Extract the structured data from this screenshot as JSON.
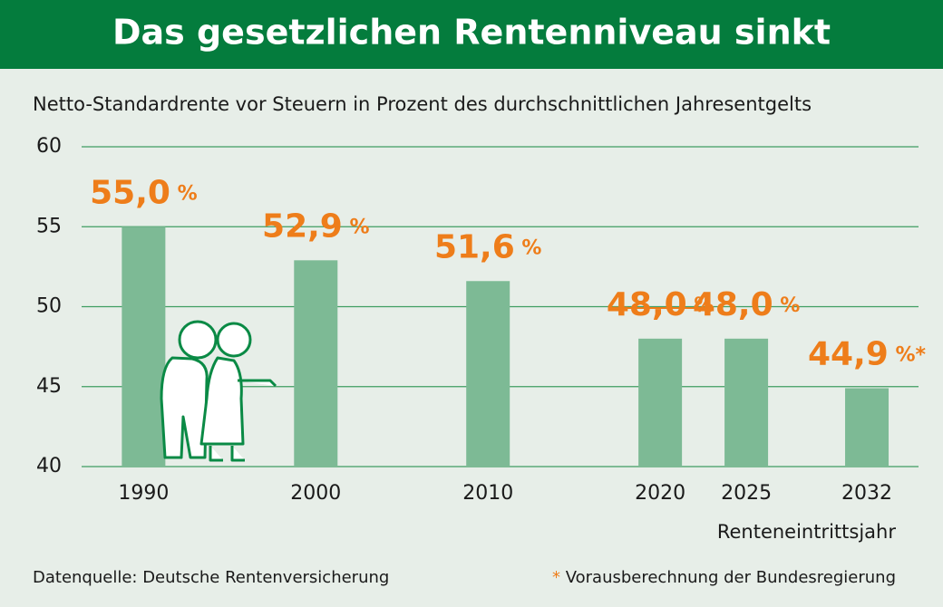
{
  "chart_data": {
    "type": "bar",
    "title": "Das gesetzlichen Rentenniveau sinkt",
    "subtitle": "Netto-Standardrente vor Steuern in Prozent des durchschnittlichen Jahresentgelts",
    "x_label": "Renteneintrittsjahr",
    "x": [
      1990,
      2000,
      2010,
      2020,
      2025,
      2032
    ],
    "values": [
      55.0,
      52.9,
      51.6,
      48.0,
      48.0,
      44.9
    ],
    "value_labels": [
      "55,0 %",
      "52,9 %",
      "51,6 %",
      "48,0 %",
      "48,0 %",
      "44,9 %*"
    ],
    "color": "#7dba95",
    "label_color": "#ee7d1a",
    "xlim": [
      1986.4,
      2035
    ],
    "xticks": [
      1990,
      2000,
      2010,
      2020,
      2025,
      2032
    ],
    "ylim": [
      40,
      60
    ],
    "yticks": [
      40,
      45,
      50,
      55,
      60
    ],
    "grid": true,
    "source": "Datenquelle: Deutsche Rentenversicherung",
    "footnote": "* Vorausberechnung der Bundesregierung"
  }
}
